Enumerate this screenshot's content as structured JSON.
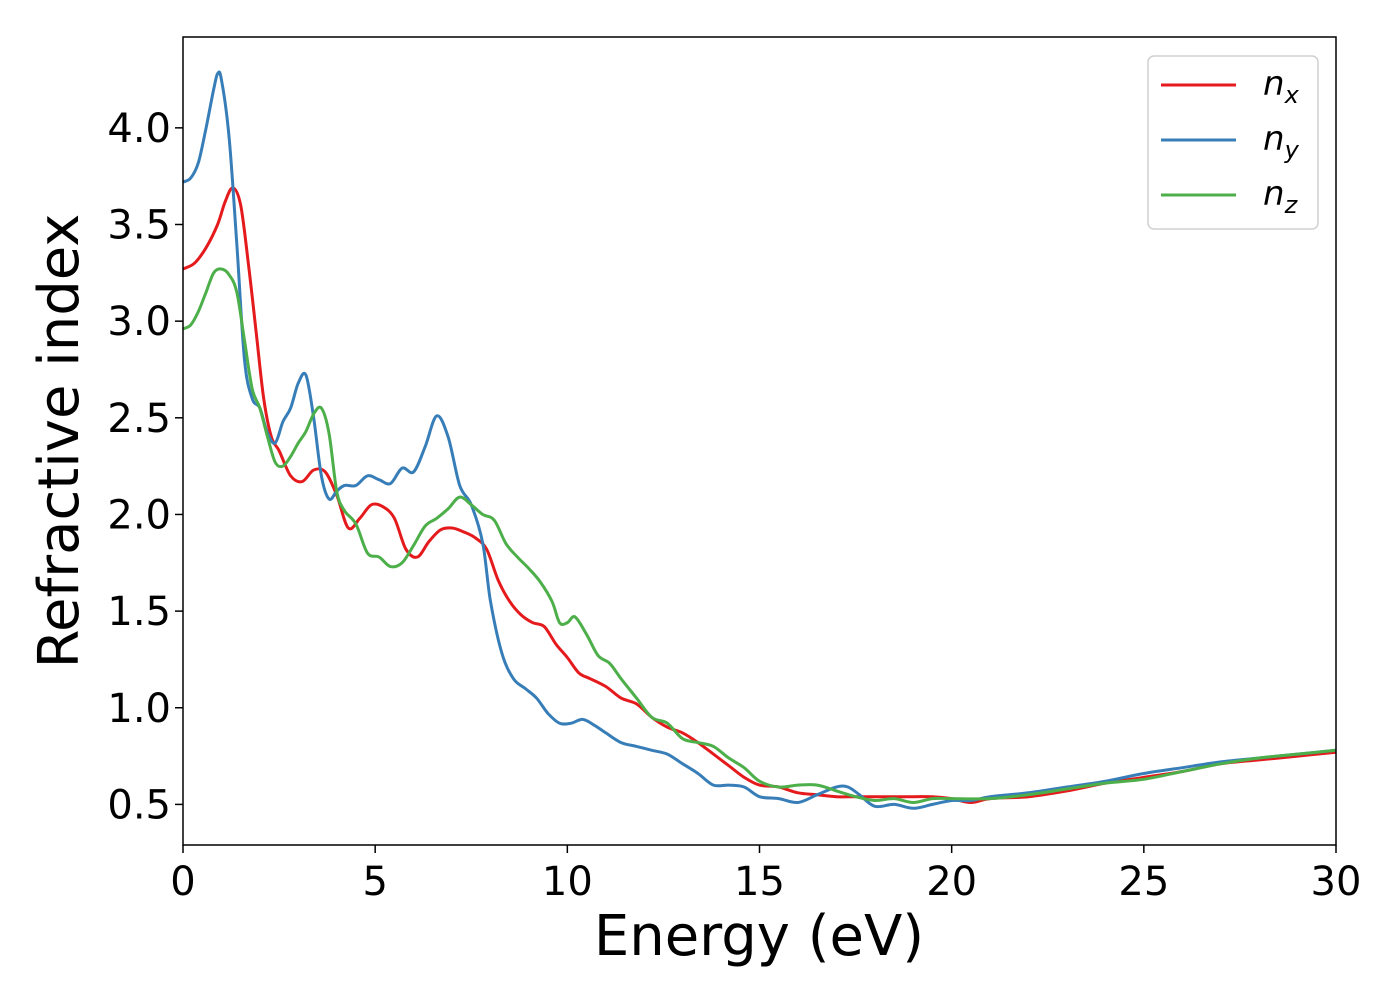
{
  "chart_data": {
    "type": "line",
    "xlabel": "Energy (eV)",
    "ylabel": "Refractive index",
    "xlim": [
      0,
      30
    ],
    "ylim": [
      0.29,
      4.47
    ],
    "xticks": [
      0,
      5,
      10,
      15,
      20,
      25,
      30
    ],
    "xtick_labels": [
      "0",
      "5",
      "10",
      "15",
      "20",
      "25",
      "30"
    ],
    "yticks": [
      0.5,
      1.0,
      1.5,
      2.0,
      2.5,
      3.0,
      3.5,
      4.0
    ],
    "ytick_labels": [
      "0.5",
      "1.0",
      "1.5",
      "2.0",
      "2.5",
      "3.0",
      "3.5",
      "4.0"
    ],
    "grid": false,
    "legend_position": "top-right",
    "series": [
      {
        "name": "n_x",
        "label_base": "n",
        "label_sub": "x",
        "color": "#e41a1c",
        "x": [
          0,
          0.3,
          0.6,
          0.9,
          1.1,
          1.3,
          1.5,
          1.7,
          1.9,
          2.1,
          2.3,
          2.5,
          2.8,
          3.1,
          3.4,
          3.7,
          4.0,
          4.3,
          4.6,
          4.9,
          5.2,
          5.5,
          5.8,
          6.1,
          6.4,
          6.7,
          7.0,
          7.3,
          7.6,
          7.9,
          8.2,
          8.5,
          8.8,
          9.1,
          9.4,
          9.7,
          10.0,
          10.3,
          10.6,
          11.0,
          11.4,
          11.8,
          12.2,
          12.6,
          13.0,
          13.4,
          13.8,
          14.2,
          14.6,
          15.0,
          15.5,
          16.0,
          16.5,
          17.0,
          17.5,
          18.0,
          18.5,
          19.0,
          19.5,
          20.0,
          20.5,
          21.0,
          22.0,
          23.0,
          24.0,
          25.0,
          26.0,
          27.0,
          28.0,
          29.0,
          30.0
        ],
        "values": [
          3.27,
          3.3,
          3.38,
          3.5,
          3.62,
          3.69,
          3.6,
          3.3,
          2.95,
          2.6,
          2.4,
          2.33,
          2.2,
          2.17,
          2.23,
          2.22,
          2.1,
          1.93,
          1.98,
          2.05,
          2.04,
          1.98,
          1.82,
          1.78,
          1.86,
          1.92,
          1.93,
          1.91,
          1.88,
          1.82,
          1.66,
          1.55,
          1.48,
          1.44,
          1.42,
          1.33,
          1.26,
          1.18,
          1.15,
          1.11,
          1.05,
          1.02,
          0.95,
          0.9,
          0.87,
          0.82,
          0.76,
          0.7,
          0.64,
          0.6,
          0.59,
          0.56,
          0.55,
          0.54,
          0.54,
          0.54,
          0.54,
          0.54,
          0.54,
          0.53,
          0.51,
          0.53,
          0.54,
          0.57,
          0.61,
          0.64,
          0.67,
          0.71,
          0.73,
          0.75,
          0.77
        ]
      },
      {
        "name": "n_y",
        "label_base": "n",
        "label_sub": "y",
        "color": "#377eb8",
        "x": [
          0,
          0.2,
          0.4,
          0.6,
          0.8,
          0.9,
          1.0,
          1.2,
          1.4,
          1.6,
          1.8,
          2.0,
          2.2,
          2.4,
          2.6,
          2.8,
          3.0,
          3.2,
          3.4,
          3.6,
          3.8,
          4.0,
          4.2,
          4.5,
          4.8,
          5.1,
          5.4,
          5.7,
          6.0,
          6.3,
          6.6,
          6.9,
          7.2,
          7.5,
          7.8,
          8.0,
          8.3,
          8.6,
          8.9,
          9.2,
          9.5,
          9.8,
          10.1,
          10.4,
          10.7,
          11.0,
          11.4,
          11.8,
          12.2,
          12.6,
          13.0,
          13.4,
          13.8,
          14.2,
          14.6,
          15.0,
          15.5,
          16.0,
          16.5,
          17.0,
          17.3,
          17.6,
          18.0,
          18.5,
          19.0,
          19.5,
          20.0,
          20.5,
          21.0,
          22.0,
          23.0,
          24.0,
          25.0,
          26.0,
          27.0,
          28.0,
          29.0,
          30.0
        ],
        "values": [
          3.72,
          3.74,
          3.82,
          4.0,
          4.2,
          4.28,
          4.25,
          3.95,
          3.4,
          2.8,
          2.6,
          2.55,
          2.42,
          2.37,
          2.48,
          2.55,
          2.68,
          2.72,
          2.5,
          2.2,
          2.08,
          2.12,
          2.15,
          2.15,
          2.2,
          2.18,
          2.16,
          2.24,
          2.22,
          2.35,
          2.51,
          2.4,
          2.15,
          2.05,
          1.85,
          1.55,
          1.28,
          1.15,
          1.1,
          1.05,
          0.97,
          0.92,
          0.92,
          0.94,
          0.91,
          0.87,
          0.82,
          0.8,
          0.78,
          0.76,
          0.71,
          0.66,
          0.6,
          0.6,
          0.59,
          0.54,
          0.53,
          0.51,
          0.55,
          0.59,
          0.59,
          0.55,
          0.49,
          0.5,
          0.48,
          0.5,
          0.52,
          0.52,
          0.54,
          0.56,
          0.59,
          0.62,
          0.66,
          0.69,
          0.72,
          0.74,
          0.76,
          0.78
        ]
      },
      {
        "name": "n_z",
        "label_base": "n",
        "label_sub": "z",
        "color": "#4daf4a",
        "x": [
          0,
          0.2,
          0.4,
          0.6,
          0.8,
          1.0,
          1.2,
          1.4,
          1.6,
          1.8,
          2.0,
          2.2,
          2.4,
          2.6,
          2.8,
          3.0,
          3.2,
          3.4,
          3.6,
          3.8,
          4.0,
          4.2,
          4.5,
          4.8,
          5.1,
          5.4,
          5.7,
          6.0,
          6.3,
          6.6,
          6.9,
          7.2,
          7.5,
          7.8,
          8.1,
          8.4,
          8.7,
          9.0,
          9.3,
          9.6,
          9.8,
          10.0,
          10.2,
          10.5,
          10.8,
          11.1,
          11.4,
          11.8,
          12.2,
          12.6,
          13.0,
          13.4,
          13.8,
          14.2,
          14.6,
          15.0,
          15.5,
          16.0,
          16.5,
          17.0,
          17.5,
          18.0,
          18.5,
          19.0,
          19.5,
          20.0,
          21.0,
          22.0,
          23.0,
          24.0,
          25.0,
          26.0,
          27.0,
          28.0,
          29.0,
          30.0
        ],
        "values": [
          2.96,
          2.98,
          3.05,
          3.15,
          3.25,
          3.27,
          3.24,
          3.15,
          2.9,
          2.65,
          2.55,
          2.4,
          2.27,
          2.25,
          2.3,
          2.37,
          2.43,
          2.52,
          2.55,
          2.42,
          2.12,
          2.02,
          1.95,
          1.8,
          1.78,
          1.73,
          1.75,
          1.84,
          1.94,
          1.98,
          2.03,
          2.09,
          2.05,
          2.0,
          1.97,
          1.85,
          1.78,
          1.72,
          1.65,
          1.55,
          1.44,
          1.44,
          1.47,
          1.38,
          1.27,
          1.23,
          1.15,
          1.05,
          0.95,
          0.92,
          0.84,
          0.82,
          0.8,
          0.74,
          0.69,
          0.62,
          0.59,
          0.6,
          0.6,
          0.57,
          0.54,
          0.52,
          0.53,
          0.51,
          0.53,
          0.53,
          0.53,
          0.55,
          0.58,
          0.61,
          0.63,
          0.67,
          0.71,
          0.74,
          0.76,
          0.78
        ]
      }
    ]
  }
}
